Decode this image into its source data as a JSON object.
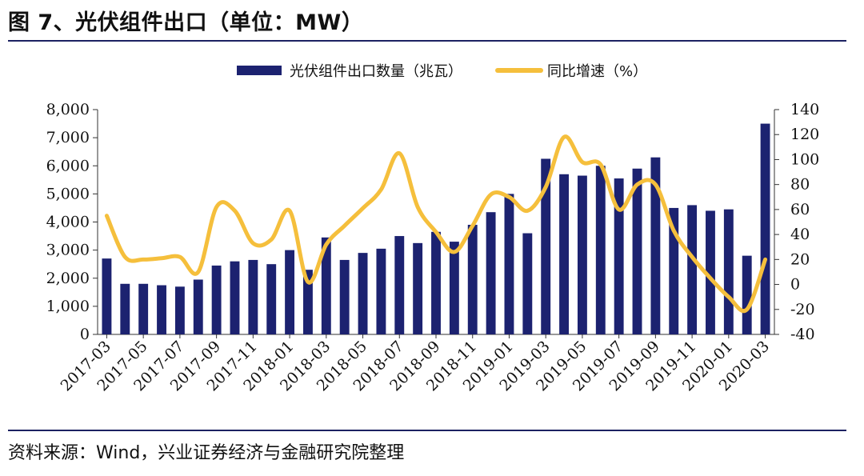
{
  "title": "图 7、光伏组件出口（单位：MW）",
  "source": "资料来源：Wind，兴业证券经济与金融研究院整理",
  "colors": {
    "bar": "#1c2270",
    "line": "#f5bf3c",
    "rule": "#1c2262"
  },
  "chart_data": {
    "type": "bar",
    "categories": [
      "2017-03",
      "2017-04",
      "2017-05",
      "2017-06",
      "2017-07",
      "2017-08",
      "2017-09",
      "2017-10",
      "2017-11",
      "2017-12",
      "2018-01",
      "2018-02",
      "2018-03",
      "2018-04",
      "2018-05",
      "2018-06",
      "2018-07",
      "2018-08",
      "2018-09",
      "2018-10",
      "2018-11",
      "2018-12",
      "2019-01",
      "2019-02",
      "2019-03",
      "2019-04",
      "2019-05",
      "2019-06",
      "2019-07",
      "2019-08",
      "2019-09",
      "2019-10",
      "2019-11",
      "2019-12",
      "2020-01",
      "2020-02",
      "2020-03"
    ],
    "x_tick_labels": [
      "2017-03",
      "2017-05",
      "2017-07",
      "2017-09",
      "2017-11",
      "2018-01",
      "2018-03",
      "2018-05",
      "2018-07",
      "2018-09",
      "2018-11",
      "2019-01",
      "2019-03",
      "2019-05",
      "2019-07",
      "2019-09",
      "2019-11",
      "2020-01",
      "2020-03"
    ],
    "series": [
      {
        "name": "光伏组件出口数量（兆瓦）",
        "type": "bar",
        "axis": "left",
        "values": [
          2700,
          1800,
          1800,
          1750,
          1700,
          1950,
          2450,
          2600,
          2650,
          2500,
          3000,
          2300,
          3450,
          2650,
          2900,
          3050,
          3500,
          3250,
          3650,
          3300,
          3900,
          4350,
          5000,
          3600,
          6250,
          5700,
          5650,
          6000,
          5550,
          5900,
          6300,
          4500,
          4600,
          4400,
          4450,
          2800,
          7500
        ]
      },
      {
        "name": "同比增速（%）",
        "type": "line",
        "axis": "right",
        "values": [
          55,
          22,
          20,
          21,
          22,
          10,
          62,
          59,
          33,
          36,
          59,
          2,
          32,
          47,
          61,
          76,
          105,
          62,
          42,
          26,
          47,
          72,
          70,
          59,
          78,
          118,
          98,
          96,
          60,
          80,
          80,
          43,
          22,
          5,
          -10,
          -20,
          20
        ]
      }
    ],
    "y_left": {
      "min": 0,
      "max": 8000,
      "ticks": [
        "0",
        "1,000",
        "2,000",
        "3,000",
        "4,000",
        "5,000",
        "6,000",
        "7,000",
        "8,000"
      ]
    },
    "y_right": {
      "min": -40,
      "max": 140,
      "ticks": [
        "-40",
        "-20",
        "0",
        "20",
        "40",
        "60",
        "80",
        "100",
        "120",
        "140"
      ]
    },
    "legend_position": "top-center",
    "grid": false
  }
}
